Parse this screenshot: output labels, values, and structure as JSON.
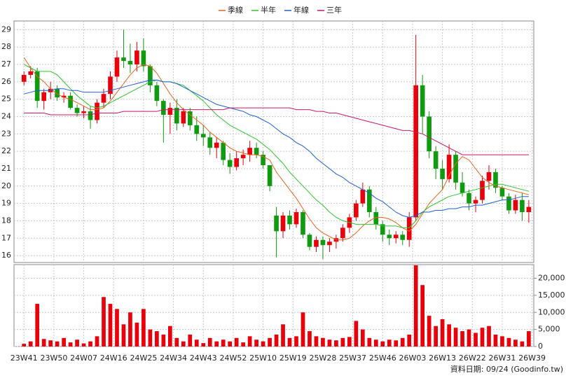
{
  "chart_data": [
    {
      "type": "candlestick",
      "x": [
        0,
        2,
        4,
        6,
        8,
        10,
        12,
        14,
        16,
        18,
        20,
        22,
        24,
        26,
        28,
        30,
        32,
        34,
        36,
        38,
        40,
        42,
        44,
        46,
        48,
        50,
        52,
        54,
        56,
        58,
        60,
        62,
        64,
        66,
        68,
        70,
        72,
        74,
        76,
        78,
        80,
        82,
        84,
        86,
        88,
        90,
        92,
        94,
        96,
        98,
        100,
        102,
        104,
        106,
        108,
        110,
        112,
        114,
        116,
        118,
        120,
        122,
        124,
        126,
        128,
        130,
        132,
        134,
        136,
        138,
        140,
        142,
        144,
        146,
        148,
        150,
        152
      ],
      "open": [
        26,
        26.4,
        26.6,
        24.9,
        25.4,
        25.6,
        25.1,
        25.2,
        24.5,
        24.2,
        24.3,
        23.8,
        24.8,
        25.3,
        26.3,
        27.4,
        27.2,
        27,
        27.8,
        26.9,
        25.8,
        24.9,
        24.1,
        24.5,
        23.6,
        24.3,
        23.5,
        23,
        22.8,
        22.2,
        22.5,
        21.5,
        21.1,
        21.6,
        21.8,
        22.2,
        21.8,
        21.2,
        18.3,
        17.4,
        18.3,
        17.8,
        18.5,
        17.2,
        16.5,
        16.9,
        16.6,
        16.8,
        17,
        17.6,
        18.2,
        19,
        19.8,
        18.5,
        17.8,
        17.2,
        17,
        17.2,
        16.9,
        18.2,
        25.8,
        24,
        22,
        21,
        20.4,
        21.8,
        20.2,
        19.6,
        19,
        19.2,
        20.3,
        20.8,
        19.9,
        19.4,
        18.6,
        19.2,
        18.5
      ],
      "high": [
        26.6,
        26.9,
        26.8,
        25.6,
        26,
        25.8,
        25.4,
        25.4,
        24.7,
        24.6,
        24.6,
        25,
        25.6,
        26.6,
        27.8,
        29,
        28.2,
        28.3,
        28.5,
        27,
        26,
        25,
        24.8,
        25,
        24.5,
        24.5,
        24,
        23.5,
        23.1,
        22.8,
        22.6,
        21.9,
        22,
        22.1,
        22.6,
        22.5,
        22,
        21.2,
        18.8,
        18.5,
        18.6,
        18.7,
        18.6,
        17.3,
        17.1,
        17.1,
        17,
        17.2,
        17.8,
        18.4,
        19.2,
        20.2,
        20,
        18.8,
        18,
        17.5,
        17.4,
        17.4,
        18.5,
        28.7,
        26.4,
        24.3,
        22.3,
        21.5,
        22.4,
        22,
        20.8,
        19.8,
        19.4,
        20.6,
        21.2,
        21,
        20,
        19.6,
        19.5,
        19.6,
        19.2
      ],
      "low": [
        25.8,
        26.2,
        24.5,
        24.4,
        25,
        24.9,
        24.8,
        24.4,
        24,
        23.9,
        23.3,
        23.6,
        24.5,
        25,
        26,
        26.8,
        26.5,
        26.6,
        26.6,
        25.4,
        24.6,
        22.5,
        23,
        23.2,
        23.4,
        23.2,
        22.6,
        22.3,
        21.8,
        21.6,
        21.2,
        20.7,
        20.9,
        21.2,
        21.4,
        21.6,
        21,
        19.7,
        15.9,
        17,
        17.5,
        17.6,
        17,
        16.3,
        16.2,
        15.8,
        16.2,
        16.4,
        16.8,
        17.3,
        18,
        18.8,
        18.2,
        17.5,
        16.8,
        16.6,
        16.7,
        16.6,
        16.5,
        18,
        23,
        21.6,
        20.4,
        19.8,
        20.2,
        19.8,
        19.4,
        18.6,
        18.5,
        19,
        19.8,
        19.6,
        19.2,
        18.4,
        18.4,
        18,
        17.9
      ],
      "close": [
        26.4,
        26.6,
        24.9,
        25.4,
        25.6,
        25.1,
        25.2,
        24.5,
        24.2,
        24.3,
        23.8,
        24.8,
        25.3,
        26.3,
        27.4,
        27.2,
        27,
        27.8,
        26.9,
        25.8,
        24.9,
        24.1,
        24.5,
        23.6,
        24.3,
        23.5,
        23,
        22.8,
        22.2,
        22.5,
        21.5,
        21.1,
        21.6,
        21.8,
        22.2,
        21.8,
        21.2,
        20,
        17.4,
        18.3,
        17.8,
        18.5,
        17.2,
        16.5,
        16.9,
        16.6,
        16.8,
        17,
        17.6,
        18.2,
        19,
        19.8,
        18.5,
        17.8,
        17.2,
        17,
        17.2,
        16.9,
        18.2,
        25.8,
        24,
        22,
        21,
        20.4,
        21.8,
        20.2,
        19.6,
        19,
        19.2,
        20.3,
        20.8,
        19.9,
        19.4,
        18.6,
        19.2,
        18.5,
        18.8
      ],
      "up_color": "#e8000b",
      "down_color": "#109a10",
      "series": [
        {
          "name": "季線",
          "color": "#e8641b",
          "values": [
            27.4,
            26.8,
            26.3,
            26,
            25.6,
            25.3,
            25.1,
            25,
            24.8,
            24.6,
            24.4,
            24.4,
            24.5,
            24.9,
            25.4,
            25.9,
            26.4,
            26.8,
            27,
            26.9,
            26.5,
            25.9,
            25.3,
            24.8,
            24.4,
            24.1,
            23.8,
            23.5,
            23.1,
            22.8,
            22.5,
            22.2,
            22,
            21.9,
            21.8,
            21.8,
            21.7,
            21.5,
            20.8,
            20.3,
            19.8,
            19.3,
            18.7,
            18.1,
            17.6,
            17.3,
            17.1,
            16.9,
            16.9,
            17,
            17.3,
            17.7,
            18,
            18.2,
            18.2,
            18.1,
            17.9,
            17.6,
            17.4,
            17.8,
            18.4,
            19,
            19.4,
            19.8,
            20.6,
            21.3,
            21.7,
            21.5,
            21,
            20.5,
            20.2,
            20,
            19.9,
            19.8,
            19.7,
            19.6,
            19.5
          ]
        },
        {
          "name": "半年",
          "color": "#2ec52e",
          "values": [
            27,
            26.8,
            26.6,
            26.6,
            26.6,
            26.4,
            26,
            25.6,
            25.2,
            24.9,
            24.6,
            24.5,
            24.6,
            24.8,
            25,
            25.2,
            25.4,
            25.6,
            25.8,
            26,
            26.1,
            26,
            26,
            25.9,
            25.8,
            25.5,
            25.2,
            24.9,
            24.5,
            24.1,
            23.8,
            23.5,
            23.3,
            23.1,
            22.9,
            22.7,
            22.4,
            22.1,
            21.7,
            21.3,
            20.8,
            20.4,
            20,
            19.6,
            19.2,
            18.9,
            18.5,
            18.2,
            18,
            17.9,
            17.8,
            17.8,
            17.8,
            17.8,
            17.7,
            17.7,
            17.7,
            17.6,
            17.6,
            18,
            18.5,
            18.8,
            19,
            19.2,
            19.4,
            19.5,
            19.6,
            19.7,
            19.8,
            19.9,
            20,
            20.1,
            20.1,
            20,
            19.9,
            19.8,
            19.7
          ]
        },
        {
          "name": "年線",
          "color": "#1f5fd0",
          "values": [
            25.3,
            25.4,
            25.5,
            25.5,
            25.5,
            25.6,
            25.6,
            25.5,
            25.5,
            25.4,
            25.4,
            25.4,
            25.4,
            25.5,
            25.6,
            25.7,
            25.8,
            25.9,
            26,
            26.1,
            26.1,
            26,
            26,
            25.9,
            25.7,
            25.5,
            25.3,
            25.1,
            24.9,
            24.7,
            24.6,
            24.5,
            24.4,
            24.3,
            24.1,
            24,
            23.8,
            23.6,
            23.3,
            23,
            22.8,
            22.5,
            22.3,
            22,
            21.6,
            21.3,
            21,
            20.7,
            20.5,
            20.2,
            20,
            19.8,
            19.6,
            19.3,
            19.1,
            18.8,
            18.5,
            18.3,
            18.2,
            18.3,
            18.5,
            18.5,
            18.6,
            18.6,
            18.7,
            18.7,
            18.8,
            18.8,
            18.9,
            18.9,
            19,
            19.1,
            19.2,
            19.2,
            19.3,
            19.4,
            19.4
          ]
        },
        {
          "name": "三年",
          "color": "#c8186a",
          "values": [
            24.2,
            24.2,
            24.2,
            24.2,
            24.1,
            24.1,
            24.1,
            24.1,
            24.1,
            24.1,
            24.1,
            24.2,
            24.2,
            24.2,
            24.2,
            24.3,
            24.3,
            24.3,
            24.3,
            24.3,
            24.3,
            24.4,
            24.4,
            24.4,
            24.4,
            24.4,
            24.4,
            24.4,
            24.4,
            24.4,
            24.4,
            24.5,
            24.5,
            24.5,
            24.5,
            24.5,
            24.5,
            24.5,
            24.5,
            24.5,
            24.5,
            24.4,
            24.4,
            24.4,
            24.3,
            24.3,
            24.2,
            24.2,
            24.1,
            24,
            23.9,
            23.8,
            23.7,
            23.6,
            23.5,
            23.4,
            23.3,
            23.2,
            23.2,
            23.1,
            23,
            22.8,
            22.6,
            22.4,
            22.2,
            22,
            21.8,
            21.8,
            21.8,
            21.8,
            21.8,
            21.8,
            21.8,
            21.8,
            21.8,
            21.8,
            21.8
          ]
        }
      ],
      "xlim": [
        -3,
        153.5
      ],
      "ylim": [
        15.6,
        29.5
      ],
      "yticks": [
        16,
        17,
        18,
        19,
        20,
        21,
        22,
        23,
        24,
        25,
        26,
        27,
        28,
        29
      ],
      "grid": true
    },
    {
      "type": "bar",
      "x": [
        0,
        2,
        4,
        6,
        8,
        10,
        12,
        14,
        16,
        18,
        20,
        22,
        24,
        26,
        28,
        30,
        32,
        34,
        36,
        38,
        40,
        42,
        44,
        46,
        48,
        50,
        52,
        54,
        56,
        58,
        60,
        62,
        64,
        66,
        68,
        70,
        72,
        74,
        76,
        78,
        80,
        82,
        84,
        86,
        88,
        90,
        92,
        94,
        96,
        98,
        100,
        102,
        104,
        106,
        108,
        110,
        112,
        114,
        116,
        118,
        120,
        122,
        124,
        126,
        128,
        130,
        132,
        134,
        136,
        138,
        140,
        142,
        144,
        146,
        148,
        150,
        152
      ],
      "values": [
        800,
        1500,
        12500,
        2200,
        1800,
        1500,
        2500,
        1200,
        2000,
        900,
        1500,
        3000,
        14500,
        12500,
        11000,
        6500,
        10000,
        7000,
        11000,
        5000,
        4500,
        3500,
        6000,
        2500,
        1500,
        3500,
        2000,
        1000,
        2500,
        1500,
        2000,
        1500,
        2500,
        1200,
        3000,
        2000,
        1500,
        2500,
        3500,
        6500,
        2500,
        3000,
        10000,
        4500,
        3000,
        2500,
        2000,
        1800,
        2500,
        2800,
        7500,
        5000,
        2500,
        2000,
        1500,
        2000,
        1800,
        2500,
        3500,
        23800,
        18000,
        9000,
        6000,
        8000,
        6500,
        5500,
        4500,
        5000,
        4000,
        5500,
        6000,
        3500,
        3000,
        2500,
        2000,
        1500,
        4500
      ],
      "color": "#e8000b",
      "xlim": [
        -3,
        153.5
      ],
      "ylim": [
        0,
        24000
      ],
      "yticks": [
        0,
        {
          "value": 5000,
          "label": "5,000"
        },
        {
          "value": 10000,
          "label": "10,000"
        },
        {
          "value": 15000,
          "label": "15,000"
        },
        {
          "value": 20000,
          "label": "20,000"
        }
      ],
      "xticks": [
        {
          "value": 0,
          "label": "23W41"
        },
        {
          "value": 9,
          "label": "23W50"
        },
        {
          "value": 18,
          "label": "24W07"
        },
        {
          "value": 27,
          "label": "24W16"
        },
        {
          "value": 36,
          "label": "24W25"
        },
        {
          "value": 45,
          "label": "24W34"
        },
        {
          "value": 54,
          "label": "24W43"
        },
        {
          "value": 63,
          "label": "24W52"
        },
        {
          "value": 72,
          "label": "25W10"
        },
        {
          "value": 81,
          "label": "25W19"
        },
        {
          "value": 90,
          "label": "25W28"
        },
        {
          "value": 99,
          "label": "25W37"
        },
        {
          "value": 108,
          "label": "25W46"
        },
        {
          "value": 117,
          "label": "26W03"
        },
        {
          "value": 126,
          "label": "26W13"
        },
        {
          "value": 135,
          "label": "26W22"
        },
        {
          "value": 144,
          "label": "26W31"
        },
        {
          "value": 153,
          "label": "26W39"
        }
      ],
      "grid": true
    }
  ],
  "footer": "資料日期: 09/24 (Goodinfo.tw)"
}
